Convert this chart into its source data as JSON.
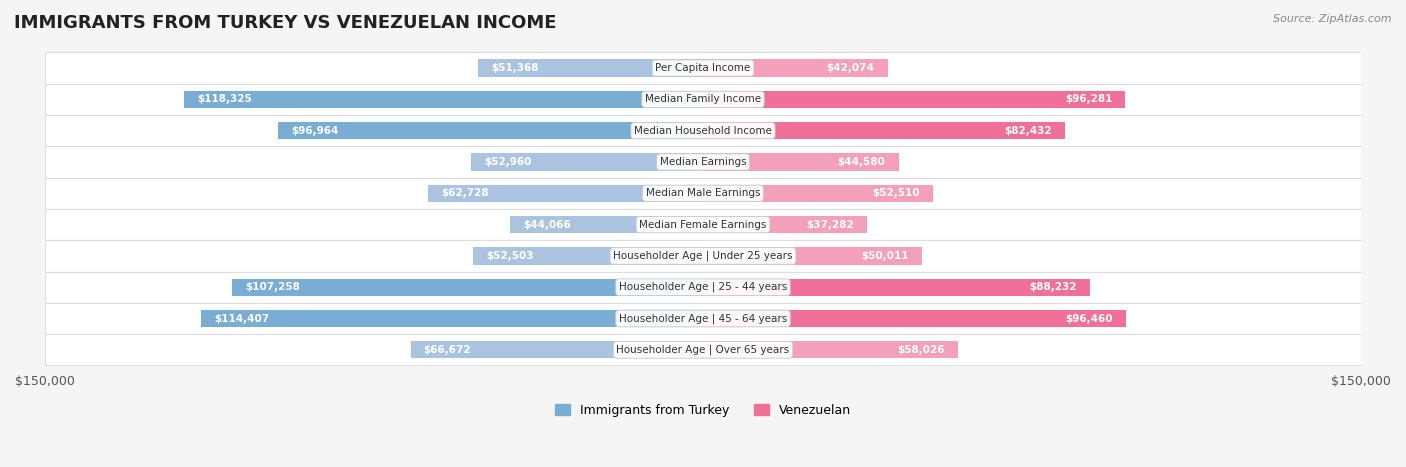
{
  "title": "IMMIGRANTS FROM TURKEY VS VENEZUELAN INCOME",
  "source": "Source: ZipAtlas.com",
  "categories": [
    "Per Capita Income",
    "Median Family Income",
    "Median Household Income",
    "Median Earnings",
    "Median Male Earnings",
    "Median Female Earnings",
    "Householder Age | Under 25 years",
    "Householder Age | 25 - 44 years",
    "Householder Age | 45 - 64 years",
    "Householder Age | Over 65 years"
  ],
  "turkey_values": [
    51368,
    118325,
    96964,
    52960,
    62728,
    44066,
    52503,
    107258,
    114407,
    66672
  ],
  "venezuela_values": [
    42074,
    96281,
    82432,
    44580,
    52510,
    37282,
    50011,
    88232,
    96460,
    58026
  ],
  "turkey_color": "#aac4e0",
  "turkey_color_highlight": "#7aadd4",
  "venezuela_color": "#f4a0b8",
  "venezuela_color_highlight": "#f07098",
  "xlim": 150000,
  "legend_turkey": "Immigrants from Turkey",
  "legend_venezuela": "Venezuelan",
  "bar_height": 0.55,
  "background_color": "#f5f5f5",
  "row_bg_color": "#ffffff",
  "row_alt_color": "#f0f0f0"
}
